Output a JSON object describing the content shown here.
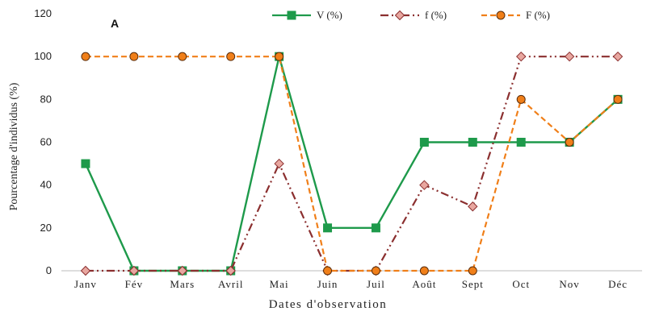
{
  "chart_data": {
    "type": "line",
    "panel_label": "A",
    "xlabel": "Dates d'observation",
    "ylabel": "Pourcentage d'individus (%)",
    "ylim": [
      0,
      120
    ],
    "yticks": [
      0,
      20,
      40,
      60,
      80,
      100,
      120
    ],
    "categories": [
      "Janv",
      "Fév",
      "Mars",
      "Avril",
      "Mai",
      "Juin",
      "Juil",
      "Août",
      "Sept",
      "Oct",
      "Nov",
      "Déc"
    ],
    "legend_position": "top",
    "series": [
      {
        "name": "V (%)",
        "color": "#1e9a4b",
        "dash": "solid",
        "marker": "square",
        "marker_fill": "#1e9a4b",
        "values": [
          50,
          0,
          0,
          0,
          100,
          20,
          20,
          60,
          60,
          60,
          60,
          80
        ]
      },
      {
        "name": "f (%)",
        "color": "#8b2f2f",
        "dash": "dashdotdot",
        "marker": "diamond",
        "marker_fill": "#e8a7a0",
        "values": [
          0,
          0,
          0,
          0,
          50,
          0,
          0,
          40,
          30,
          100,
          100,
          100
        ]
      },
      {
        "name": "F (%)",
        "color": "#f07f19",
        "dash": "dashed",
        "marker": "circle",
        "marker_fill": "#f07f19",
        "values": [
          100,
          100,
          100,
          100,
          100,
          0,
          0,
          0,
          0,
          80,
          60,
          80
        ]
      }
    ]
  }
}
